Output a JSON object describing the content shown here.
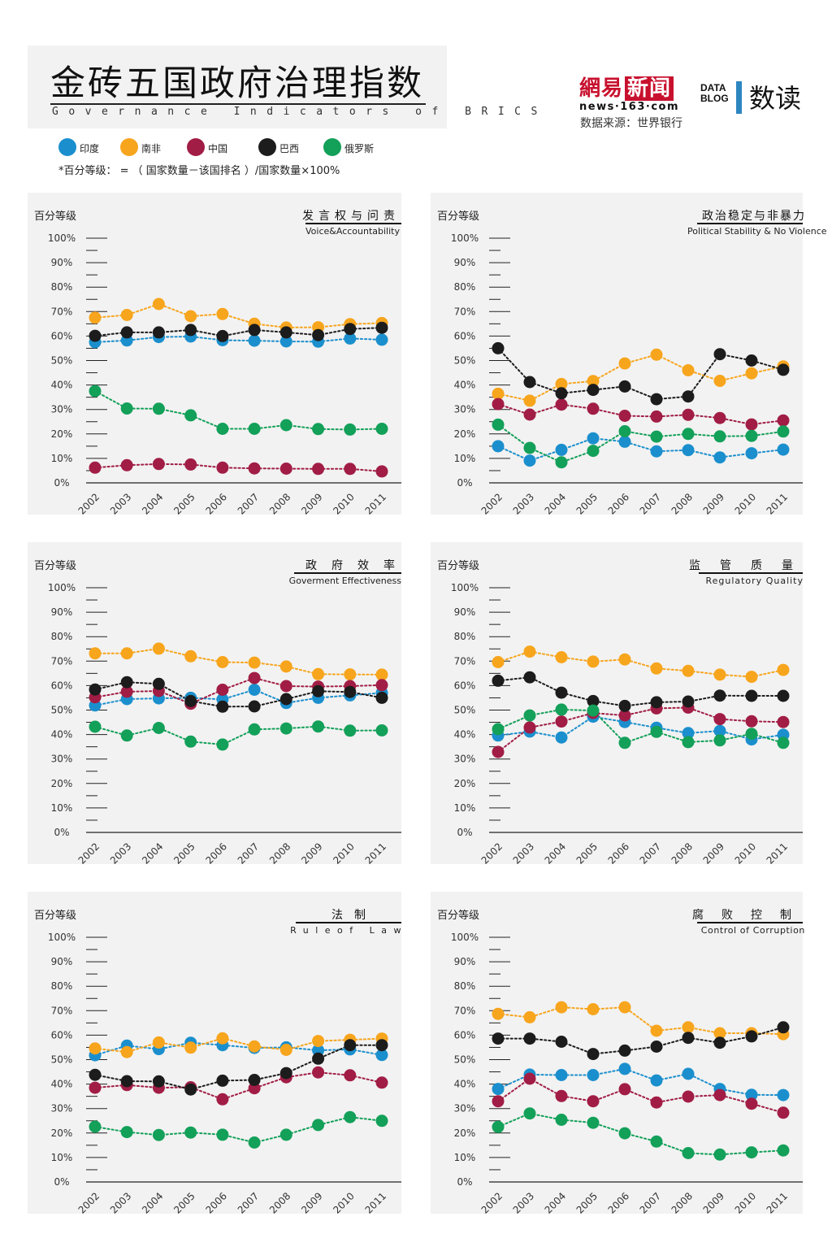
{
  "header": {
    "title": "金砖五国政府治理指数",
    "subtitle": "Governance Indicators of BRICS"
  },
  "logo": {
    "netease_cn_a": "網易",
    "netease_cn_b": "新闻",
    "netease_url": "news·163·com",
    "datablog_line1": "DATA",
    "datablog_line2": "BLOG",
    "shudu": "数读"
  },
  "source": "数据来源：世界银行",
  "legend": [
    {
      "name": "印度",
      "color": "#1b8fcd"
    },
    {
      "name": "南非",
      "color": "#f7a51d"
    },
    {
      "name": "中国",
      "color": "#a11d45"
    },
    {
      "name": "巴西",
      "color": "#1c1c1c"
    },
    {
      "name": "俄罗斯",
      "color": "#13a059"
    }
  ],
  "note": "*百分等级： = （ 国家数量－该国排名 ）/国家数量×100%",
  "chart_data": [
    {
      "type": "line",
      "title": "发言权与问责",
      "subtitle": "Voice&Accountability",
      "ylabel": "百分等级",
      "ylim": [
        0,
        100
      ],
      "yticks": [
        "0%",
        "10%",
        "20%",
        "30%",
        "40%",
        "50%",
        "60%",
        "70%",
        "80%",
        "90%",
        "100%"
      ],
      "x": [
        "2002",
        "2003",
        "2004",
        "2005",
        "2006",
        "2007",
        "2008",
        "2009",
        "2010",
        "2011"
      ],
      "series": [
        {
          "name": "印度",
          "color": "#1b8fcd",
          "values": [
            57.5,
            58.2,
            59.6,
            59.8,
            58.3,
            58.1,
            57.8,
            57.7,
            59.0,
            58.5
          ]
        },
        {
          "name": "南非",
          "color": "#f7a51d",
          "values": [
            67.5,
            68.6,
            73.1,
            68.1,
            69.0,
            65.0,
            63.5,
            63.6,
            64.9,
            65.3
          ]
        },
        {
          "name": "中国",
          "color": "#a11d45",
          "values": [
            6.2,
            7.2,
            7.7,
            7.5,
            6.2,
            5.9,
            5.8,
            5.7,
            5.7,
            4.7
          ]
        },
        {
          "name": "巴西",
          "color": "#1c1c1c",
          "values": [
            60.1,
            61.5,
            61.5,
            62.5,
            60.0,
            62.5,
            61.5,
            60.4,
            62.9,
            63.4
          ]
        },
        {
          "name": "俄罗斯",
          "color": "#13a059",
          "values": [
            37.5,
            30.4,
            30.3,
            27.6,
            22.1,
            22.1,
            23.6,
            22.0,
            21.8,
            22.1
          ]
        }
      ]
    },
    {
      "type": "line",
      "title": "政治稳定与非暴力",
      "subtitle": "Political Stability & No Violence",
      "ylabel": "百分等级",
      "ylim": [
        0,
        100
      ],
      "yticks": [
        "0%",
        "10%",
        "20%",
        "30%",
        "40%",
        "50%",
        "60%",
        "70%",
        "80%",
        "90%",
        "100%"
      ],
      "x": [
        "2002",
        "2003",
        "2004",
        "2005",
        "2006",
        "2007",
        "2008",
        "2009",
        "2010",
        "2011"
      ],
      "series": [
        {
          "name": "印度",
          "color": "#1b8fcd",
          "values": [
            15.0,
            9.1,
            13.5,
            18.2,
            16.8,
            12.9,
            13.4,
            10.4,
            12.1,
            13.6
          ]
        },
        {
          "name": "南非",
          "color": "#f7a51d",
          "values": [
            36.4,
            33.6,
            40.4,
            41.6,
            48.8,
            52.4,
            46.0,
            41.7,
            44.8,
            47.6
          ]
        },
        {
          "name": "中国",
          "color": "#a11d45",
          "values": [
            32.2,
            27.9,
            32.0,
            30.3,
            27.4,
            27.1,
            27.8,
            26.5,
            23.9,
            25.5
          ]
        },
        {
          "name": "巴西",
          "color": "#1c1c1c",
          "values": [
            55.0,
            41.2,
            36.6,
            38.0,
            39.4,
            34.2,
            35.3,
            52.6,
            50.0,
            46.2
          ]
        },
        {
          "name": "俄罗斯",
          "color": "#13a059",
          "values": [
            23.8,
            14.3,
            8.4,
            13.1,
            21.1,
            18.9,
            20.0,
            19.0,
            19.2,
            21.0
          ]
        }
      ]
    },
    {
      "type": "line",
      "title": "政府效率",
      "subtitle": "Goverment Effectiveness",
      "ylabel": "百分等级",
      "ylim": [
        0,
        100
      ],
      "yticks": [
        "0%",
        "10%",
        "20%",
        "30%",
        "40%",
        "50%",
        "60%",
        "70%",
        "80%",
        "90%",
        "100%"
      ],
      "x": [
        "2002",
        "2003",
        "2004",
        "2005",
        "2006",
        "2007",
        "2008",
        "2009",
        "2010",
        "2011"
      ],
      "series": [
        {
          "name": "印度",
          "color": "#1b8fcd",
          "values": [
            51.9,
            54.5,
            54.8,
            55.0,
            54.4,
            58.3,
            52.9,
            55.0,
            56.0,
            57.0
          ]
        },
        {
          "name": "南非",
          "color": "#f7a51d",
          "values": [
            73.2,
            73.2,
            75.1,
            72.0,
            69.6,
            69.4,
            67.8,
            64.7,
            64.6,
            64.5
          ]
        },
        {
          "name": "中国",
          "color": "#a11d45",
          "values": [
            55.2,
            57.5,
            57.8,
            52.6,
            58.3,
            63.1,
            59.8,
            59.6,
            59.8,
            60.2
          ]
        },
        {
          "name": "巴西",
          "color": "#1c1c1c",
          "values": [
            58.4,
            61.4,
            60.7,
            53.7,
            51.4,
            51.5,
            54.5,
            57.7,
            57.4,
            55.0
          ]
        },
        {
          "name": "俄罗斯",
          "color": "#13a059",
          "values": [
            43.2,
            39.6,
            42.7,
            37.1,
            35.9,
            42.1,
            42.5,
            43.3,
            41.6,
            41.7
          ]
        }
      ]
    },
    {
      "type": "line",
      "title": "监管质量",
      "subtitle": "Regulatory Quality",
      "ylabel": "百分等级",
      "ylim": [
        0,
        100
      ],
      "yticks": [
        "0%",
        "10%",
        "20%",
        "30%",
        "40%",
        "50%",
        "60%",
        "70%",
        "80%",
        "90%",
        "100%"
      ],
      "x": [
        "2002",
        "2003",
        "2004",
        "2005",
        "2006",
        "2007",
        "2008",
        "2009",
        "2010",
        "2011"
      ],
      "series": [
        {
          "name": "印度",
          "color": "#1b8fcd",
          "values": [
            39.6,
            41.2,
            38.8,
            47.3,
            45.1,
            42.8,
            40.6,
            41.5,
            38.0,
            39.9
          ]
        },
        {
          "name": "南非",
          "color": "#f7a51d",
          "values": [
            69.6,
            73.9,
            71.6,
            69.8,
            70.7,
            67.0,
            66.0,
            64.5,
            63.6,
            66.4
          ]
        },
        {
          "name": "中国",
          "color": "#a11d45",
          "values": [
            32.9,
            42.9,
            45.3,
            48.8,
            47.8,
            50.7,
            51.0,
            46.3,
            45.4,
            45.1
          ]
        },
        {
          "name": "巴西",
          "color": "#1c1c1c",
          "values": [
            62.0,
            63.4,
            57.1,
            53.7,
            51.7,
            53.2,
            53.5,
            55.9,
            55.8,
            55.8
          ]
        },
        {
          "name": "俄罗斯",
          "color": "#13a059",
          "values": [
            42.2,
            47.8,
            50.2,
            49.8,
            36.6,
            41.1,
            36.9,
            37.6,
            40.3,
            36.6
          ]
        }
      ]
    },
    {
      "type": "line",
      "title": "法制",
      "subtitle": "Ruleof Law",
      "ylabel": "百分等级",
      "ylim": [
        0,
        100
      ],
      "yticks": [
        "0%",
        "10%",
        "20%",
        "30%",
        "40%",
        "50%",
        "60%",
        "70%",
        "80%",
        "90%",
        "100%"
      ],
      "x": [
        "2002",
        "2003",
        "2004",
        "2005",
        "2006",
        "2007",
        "2008",
        "2009",
        "2010",
        "2011"
      ],
      "series": [
        {
          "name": "印度",
          "color": "#1b8fcd",
          "values": [
            51.8,
            55.7,
            54.3,
            56.9,
            55.9,
            54.8,
            55.0,
            53.8,
            54.2,
            51.9
          ]
        },
        {
          "name": "南非",
          "color": "#f7a51d",
          "values": [
            54.6,
            53.1,
            57.0,
            54.9,
            58.7,
            55.4,
            54.0,
            57.6,
            58.1,
            58.6
          ]
        },
        {
          "name": "中国",
          "color": "#a11d45",
          "values": [
            38.5,
            39.6,
            38.5,
            38.7,
            33.8,
            38.3,
            42.8,
            44.8,
            43.6,
            40.6
          ]
        },
        {
          "name": "巴西",
          "color": "#1c1c1c",
          "values": [
            43.8,
            41.2,
            41.1,
            37.8,
            41.4,
            41.7,
            44.5,
            50.4,
            55.9,
            55.9
          ]
        },
        {
          "name": "俄罗斯",
          "color": "#13a059",
          "values": [
            22.6,
            20.4,
            19.2,
            20.2,
            19.3,
            16.1,
            19.3,
            23.3,
            26.5,
            25.0
          ]
        }
      ]
    },
    {
      "type": "line",
      "title": "腐败控制",
      "subtitle": "Control of Corruption",
      "ylabel": "百分等级",
      "ylim": [
        0,
        100
      ],
      "yticks": [
        "0%",
        "10%",
        "20%",
        "30%",
        "40%",
        "50%",
        "60%",
        "70%",
        "80%",
        "90%",
        "100%"
      ],
      "x": [
        "2002",
        "2003",
        "2004",
        "2005",
        "2006",
        "2007",
        "2008",
        "2009",
        "2010",
        "2011"
      ],
      "series": [
        {
          "name": "印度",
          "color": "#1b8fcd",
          "values": [
            38.0,
            43.9,
            43.7,
            43.7,
            46.2,
            41.5,
            44.2,
            38.0,
            35.6,
            35.5
          ]
        },
        {
          "name": "南非",
          "color": "#f7a51d",
          "values": [
            68.7,
            67.3,
            71.4,
            70.6,
            71.4,
            61.8,
            63.2,
            60.8,
            60.8,
            60.4
          ]
        },
        {
          "name": "中国",
          "color": "#a11d45",
          "values": [
            33.0,
            42.2,
            35.1,
            33.0,
            37.9,
            32.5,
            34.9,
            35.5,
            32.0,
            28.3
          ]
        },
        {
          "name": "巴西",
          "color": "#1c1c1c",
          "values": [
            58.6,
            58.6,
            57.3,
            52.3,
            53.7,
            55.3,
            58.9,
            56.9,
            59.5,
            63.2
          ]
        },
        {
          "name": "俄罗斯",
          "color": "#13a059",
          "values": [
            22.5,
            28.0,
            25.4,
            24.2,
            19.9,
            16.5,
            11.8,
            11.2,
            12.1,
            12.9
          ]
        }
      ]
    }
  ]
}
